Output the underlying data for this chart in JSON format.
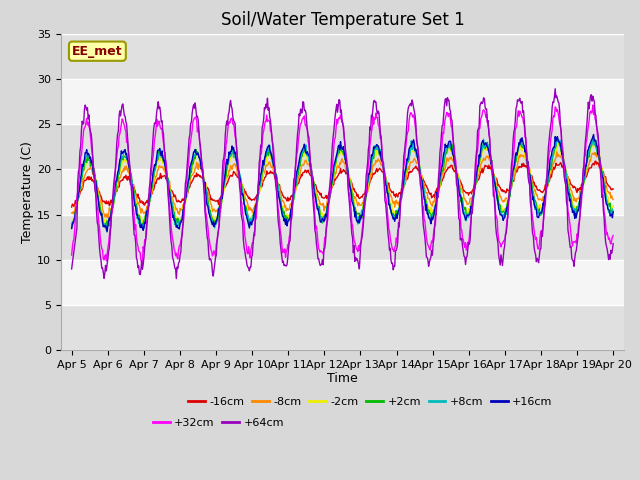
{
  "title": "Soil/Water Temperature Set 1",
  "xlabel": "Time",
  "ylabel": "Temperature (C)",
  "ylim": [
    0,
    35
  ],
  "yticks": [
    0,
    5,
    10,
    15,
    20,
    25,
    30,
    35
  ],
  "x_labels": [
    "Apr 5",
    "Apr 6",
    "Apr 7",
    "Apr 8",
    "Apr 9",
    "Apr 10",
    "Apr 11",
    "Apr 12",
    "Apr 13",
    "Apr 14",
    "Apr 15",
    "Apr 16",
    "Apr 17",
    "Apr 18",
    "Apr 19",
    "Apr 20"
  ],
  "series_colors": [
    "#dd0000",
    "#ff8800",
    "#eeee00",
    "#00bb00",
    "#00bbbb",
    "#0000bb",
    "#ff00ff",
    "#9900bb"
  ],
  "series_labels": [
    "-16cm",
    "-8cm",
    "-2cm",
    "+2cm",
    "+8cm",
    "+16cm",
    "+32cm",
    "+64cm"
  ],
  "watermark_text": "EE_met",
  "watermark_fg": "#880000",
  "watermark_bg": "#ffffaa",
  "watermark_border": "#999900",
  "bg_color": "#d8d8d8",
  "plot_bg_color": "#f5f5f5",
  "band_color": "#e0e0e0",
  "grid_color": "#ffffff",
  "title_fontsize": 12,
  "label_fontsize": 9,
  "tick_fontsize": 8,
  "legend_fontsize": 8
}
